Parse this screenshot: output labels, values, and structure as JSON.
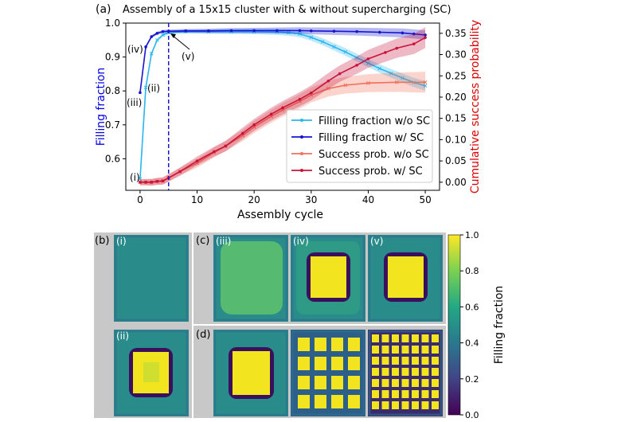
{
  "panel_a": {
    "label": "(a)",
    "title": "Assembly of a 15x15 cluster with & without supercharging (SC)",
    "annotations": [
      "(i)",
      "(ii)",
      "(iii)",
      "(iv)",
      "(v)"
    ]
  },
  "chart_data": {
    "type": "line",
    "title": "Assembly of a 15x15 cluster with & without supercharging (SC)",
    "xlabel": "Assembly cycle",
    "ylabel_left": "Filling fraction",
    "ylabel_right": "Cumulative success probability",
    "xlim": [
      -2.5,
      52.5
    ],
    "ylim_left": [
      0.507,
      1.0
    ],
    "ylim_right": [
      -0.019,
      0.374
    ],
    "x_ticks": [
      "0",
      "10",
      "20",
      "30",
      "40",
      "50"
    ],
    "y_left_ticks": [
      "0.6",
      "0.7",
      "0.8",
      "0.9",
      "1.0"
    ],
    "y_right_ticks": [
      "0.00",
      "0.05",
      "0.10",
      "0.15",
      "0.20",
      "0.25",
      "0.30",
      "0.35"
    ],
    "vertical_line_x": 5,
    "legend_position": "lower-right",
    "colors": {
      "left_axis": "#0000ee",
      "right_axis": "#dd0000",
      "vline": "#1a1acc"
    },
    "series": [
      {
        "name": "Filling fraction w/o SC",
        "axis": "left",
        "color": "#29b6f0",
        "marker": "x",
        "x": [
          0,
          1,
          2,
          3,
          4,
          5,
          8,
          12,
          16,
          20,
          24,
          26,
          28,
          30,
          32,
          34,
          36,
          38,
          40,
          42,
          44,
          46,
          48,
          50
        ],
        "y": [
          0.54,
          0.81,
          0.91,
          0.95,
          0.965,
          0.972,
          0.975,
          0.975,
          0.975,
          0.975,
          0.974,
          0.972,
          0.968,
          0.958,
          0.945,
          0.93,
          0.915,
          0.898,
          0.882,
          0.866,
          0.852,
          0.838,
          0.825,
          0.815
        ]
      },
      {
        "name": "Filling fraction w/ SC",
        "axis": "left",
        "color": "#1414d2",
        "marker": "o",
        "x": [
          0,
          1,
          2,
          3,
          4,
          5,
          8,
          12,
          16,
          20,
          24,
          28,
          30,
          34,
          38,
          42,
          46,
          48,
          50
        ],
        "y": [
          0.795,
          0.93,
          0.96,
          0.97,
          0.975,
          0.976,
          0.977,
          0.977,
          0.978,
          0.978,
          0.978,
          0.978,
          0.977,
          0.976,
          0.975,
          0.973,
          0.971,
          0.968,
          0.965
        ]
      },
      {
        "name": "Success prob. w/o SC",
        "axis": "right",
        "color": "#f0705a",
        "marker": "x",
        "x": [
          0,
          1,
          2,
          3,
          4,
          5,
          7,
          10,
          13,
          15,
          18,
          20,
          23,
          25,
          28,
          30,
          33,
          36,
          40,
          45,
          50
        ],
        "y": [
          0,
          0,
          0,
          0.002,
          0.003,
          0.01,
          0.025,
          0.045,
          0.07,
          0.085,
          0.11,
          0.13,
          0.155,
          0.17,
          0.19,
          0.205,
          0.22,
          0.228,
          0.233,
          0.235,
          0.235
        ]
      },
      {
        "name": "Success prob. w/ SC",
        "axis": "right",
        "color": "#c8143c",
        "marker": "o",
        "x": [
          0,
          1,
          2,
          3,
          4,
          5,
          7,
          10,
          13,
          15,
          18,
          20,
          23,
          25,
          28,
          30,
          33,
          35,
          38,
          40,
          43,
          45,
          48,
          50
        ],
        "y": [
          0,
          0,
          0,
          0.002,
          0.003,
          0.01,
          0.025,
          0.05,
          0.072,
          0.085,
          0.115,
          0.135,
          0.16,
          0.175,
          0.195,
          0.21,
          0.238,
          0.255,
          0.275,
          0.29,
          0.305,
          0.315,
          0.325,
          0.34
        ]
      }
    ]
  },
  "panel_labels": {
    "b": "(b)",
    "c": "(c)",
    "d": "(d)"
  },
  "image_labels": [
    "(i)",
    "(ii)",
    "(iii)",
    "(iv)",
    "(v)"
  ],
  "colorbar": {
    "label": "Filling fraction",
    "ticks": [
      "0.0",
      "0.2",
      "0.4",
      "0.6",
      "0.8",
      "1.0"
    ],
    "colormap": "viridis"
  }
}
